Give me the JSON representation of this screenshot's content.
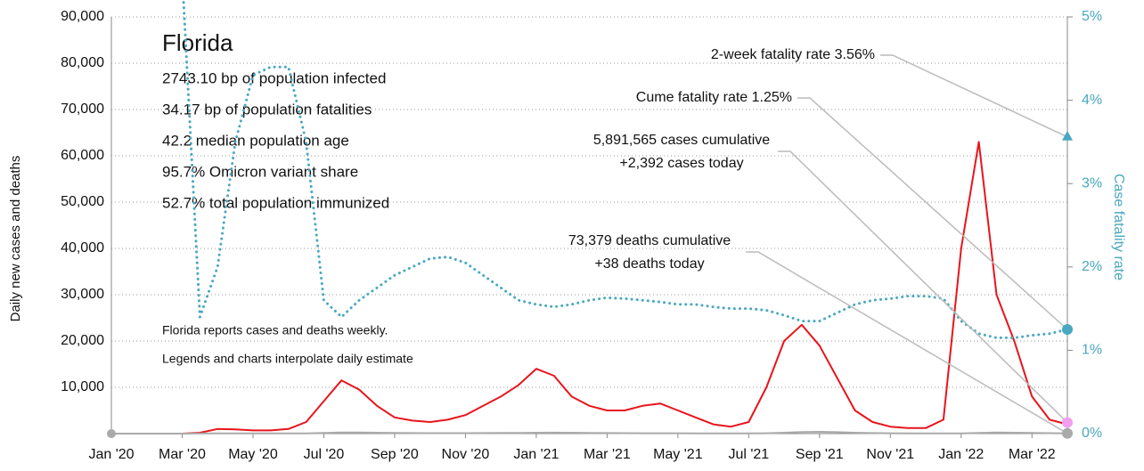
{
  "chart_data": {
    "type": "line",
    "categories": [
      "Jan '20",
      null,
      null,
      null,
      "Mar '20",
      null,
      null,
      null,
      "May '20",
      null,
      null,
      null,
      "Jul '20",
      null,
      null,
      null,
      "Sep '20",
      null,
      null,
      null,
      "Nov '20",
      null,
      null,
      null,
      "Jan '21",
      null,
      null,
      null,
      "Mar '21",
      null,
      null,
      null,
      "May '21",
      null,
      null,
      null,
      "Jul '21",
      null,
      null,
      null,
      "Sep '21",
      null,
      null,
      null,
      "Nov '21",
      null,
      null,
      null,
      "Jan '22",
      null,
      null,
      null,
      "Mar '22",
      null,
      null
    ],
    "series": [
      {
        "color": "#e8141c",
        "values": [
          0,
          0,
          0,
          0,
          0,
          200,
          1000,
          900,
          700,
          700,
          1000,
          2500,
          7000,
          11500,
          9500,
          6000,
          3500,
          2800,
          2500,
          3000,
          4000,
          6000,
          8000,
          10500,
          14000,
          12500,
          8000,
          6000,
          5000,
          5000,
          6000,
          6500,
          5000,
          3500,
          2000,
          1500,
          2500,
          10000,
          20000,
          23500,
          19000,
          12000,
          5000,
          2500,
          1500,
          1200,
          1200,
          3000,
          40000,
          63000,
          30000,
          20000,
          8000,
          3000,
          2000
        ]
      },
      {
        "color": "#aaaaaa",
        "values": [
          0,
          0,
          0,
          0,
          0,
          20,
          60,
          60,
          50,
          40,
          40,
          60,
          150,
          250,
          250,
          200,
          150,
          120,
          100,
          90,
          90,
          110,
          130,
          160,
          200,
          220,
          200,
          160,
          120,
          100,
          80,
          80,
          70,
          60,
          50,
          40,
          40,
          80,
          200,
          350,
          380,
          300,
          200,
          120,
          70,
          50,
          40,
          30,
          60,
          150,
          250,
          200,
          150,
          100,
          60
        ]
      },
      {
        "color": "#4aa8c0",
        "axis": "y2",
        "values": [
          null,
          null,
          null,
          null,
          5.5,
          1.4,
          2.0,
          3.5,
          4.3,
          4.4,
          4.4,
          3.5,
          1.6,
          1.4,
          1.6,
          1.75,
          1.9,
          2.0,
          2.1,
          2.12,
          2.05,
          1.9,
          1.75,
          1.6,
          1.55,
          1.52,
          1.55,
          1.6,
          1.63,
          1.62,
          1.6,
          1.58,
          1.55,
          1.55,
          1.52,
          1.5,
          1.5,
          1.48,
          1.42,
          1.35,
          1.35,
          1.45,
          1.55,
          1.6,
          1.62,
          1.65,
          1.65,
          1.62,
          1.35,
          1.2,
          1.15,
          1.15,
          1.18,
          1.2,
          1.25
        ]
      }
    ],
    "ylim": [
      0,
      90000
    ],
    "yticks": [
      {
        "value": 10000,
        "label": "10,000"
      },
      {
        "value": 20000,
        "label": "20,000"
      },
      {
        "value": 30000,
        "label": "30,000"
      },
      {
        "value": 40000,
        "label": "40,000"
      },
      {
        "value": 50000,
        "label": "50,000"
      },
      {
        "value": 60000,
        "label": "60,000"
      },
      {
        "value": 70000,
        "label": "70,000"
      },
      {
        "value": 80000,
        "label": "80,000"
      },
      {
        "value": 90000,
        "label": "90,000"
      }
    ],
    "y2lim": [
      0,
      5
    ],
    "y2ticks": [
      {
        "value": 0,
        "label": "0%"
      },
      {
        "value": 1,
        "label": "1%"
      },
      {
        "value": 2,
        "label": "2%"
      },
      {
        "value": 3,
        "label": "3%"
      },
      {
        "value": 4,
        "label": "4%"
      },
      {
        "value": 5,
        "label": "5%"
      }
    ],
    "ylabel": "Daily new cases and deaths",
    "y2label": "Case fatality rate",
    "grid": true,
    "title": "Florida",
    "stats": [
      "2743.10 bp of population infected",
      "34.17 bp of population fatalities",
      "42.2 median population age",
      "95.7% Omicron variant share",
      "52.7% total population immunized"
    ],
    "notes": [
      "Florida reports cases and deaths weekly.",
      "Legends and charts interpolate daily estimate"
    ],
    "annotations": [
      {
        "lines": [
          "2-week fatality rate 3.56%"
        ],
        "value": 3.56,
        "axis": "y2",
        "color": "#4aa8c0",
        "shape": "triangle"
      },
      {
        "lines": [
          "Cume fatality rate 1.25%"
        ],
        "value": 1.25,
        "axis": "y2",
        "color": "#4aa8c0",
        "shape": "circle"
      },
      {
        "lines": [
          "5,891,565 cases cumulative",
          "+2,392 cases today"
        ],
        "value": 2392,
        "axis": "y",
        "color": "#f29ff0",
        "shape": "circle"
      },
      {
        "lines": [
          "73,379 deaths cumulative",
          "+38 deaths today"
        ],
        "value": 38,
        "axis": "y",
        "color": "#aaaaaa",
        "shape": "circle"
      }
    ]
  }
}
